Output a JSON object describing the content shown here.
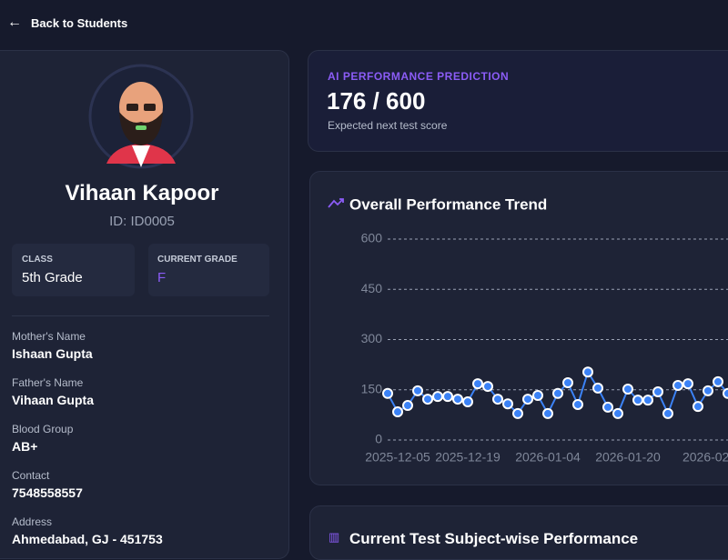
{
  "nav": {
    "back": "Back to Students"
  },
  "profile": {
    "name": "Vihaan Kapoor",
    "id": "ID: ID0005",
    "class_label": "CLASS",
    "class_value": "5th Grade",
    "grade_label": "CURRENT GRADE",
    "grade_value": "F",
    "fields": [
      {
        "label": "Mother's Name",
        "value": "Ishaan Gupta"
      },
      {
        "label": "Father's Name",
        "value": "Vihaan Gupta"
      },
      {
        "label": "Blood Group",
        "value": "AB+"
      },
      {
        "label": "Contact",
        "value": "7548558557"
      },
      {
        "label": "Address",
        "value": "Ahmedabad, GJ - 451753"
      }
    ]
  },
  "prediction": {
    "title": "AI PERFORMANCE PREDICTION",
    "score": "176 / 600",
    "caption": "Expected next test score"
  },
  "chart_data": {
    "type": "line",
    "title": "Overall Performance Trend",
    "categories": [
      null,
      "2025-12-05",
      null,
      null,
      null,
      null,
      null,
      null,
      "2025-12-19",
      null,
      null,
      null,
      null,
      null,
      null,
      null,
      "2026-01-04",
      null,
      null,
      null,
      null,
      null,
      null,
      null,
      "2026-01-20",
      null,
      null,
      null,
      null,
      null,
      null,
      null,
      "2026-02-",
      null,
      null
    ],
    "color": "#3b82f6",
    "values": [
      139,
      84,
      103,
      147,
      122,
      130,
      130,
      122,
      114,
      168,
      160,
      122,
      108,
      79,
      122,
      133,
      79,
      139,
      171,
      106,
      203,
      155,
      98,
      79,
      152,
      119,
      119,
      144,
      79,
      163,
      168,
      100,
      147,
      174,
      139
    ],
    "ylim": [
      0,
      600
    ],
    "yticks": [
      0,
      150,
      300,
      450,
      600
    ],
    "grid": true
  },
  "subject_section": {
    "title": "Current Test Subject-wise Performance"
  }
}
